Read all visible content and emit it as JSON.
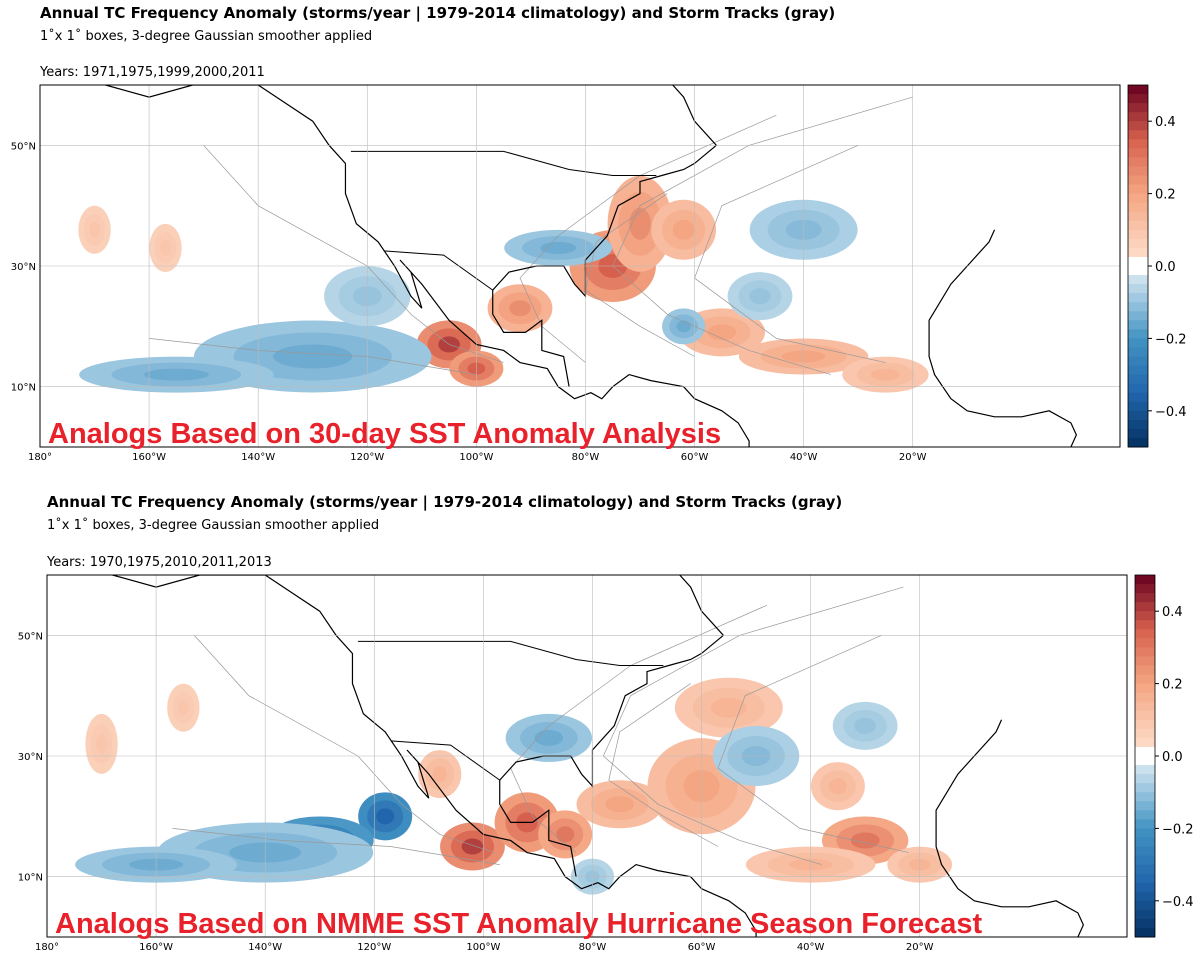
{
  "panels": [
    {
      "title": "Annual TC Frequency Anomaly (storms/year | 1979-2014 climatology) and Storm Tracks (gray)",
      "subtitle": "1˚x 1˚  boxes, 3-degree Gaussian smoother applied",
      "years": "Years: 1971,1975,1999,2000,2011",
      "overlay": "Analogs Based on 30-day SST Anomaly Analysis",
      "anomaly_regions": [
        [
          -75,
          30,
          8,
          6,
          0.35
        ],
        [
          -70,
          37,
          6,
          8,
          0.25
        ],
        [
          -62,
          36,
          6,
          5,
          0.2
        ],
        [
          -105,
          17,
          6,
          4,
          0.4
        ],
        [
          -100,
          13,
          5,
          3,
          0.35
        ],
        [
          -92,
          23,
          6,
          4,
          0.25
        ],
        [
          -55,
          19,
          8,
          4,
          0.2
        ],
        [
          -40,
          15,
          12,
          3,
          0.2
        ],
        [
          -25,
          12,
          8,
          3,
          0.15
        ],
        [
          -170,
          36,
          3,
          4,
          0.1
        ],
        [
          -157,
          33,
          3,
          4,
          0.1
        ],
        [
          -133,
          16,
          7,
          3,
          -0.4
        ],
        [
          -130,
          15,
          22,
          6,
          -0.15
        ],
        [
          -120,
          25,
          8,
          5,
          -0.1
        ],
        [
          -85,
          33,
          10,
          3,
          -0.15
        ],
        [
          -40,
          36,
          10,
          5,
          -0.12
        ],
        [
          -62,
          20,
          4,
          3,
          -0.15
        ],
        [
          -155,
          12,
          18,
          3,
          -0.15
        ],
        [
          -48,
          25,
          6,
          4,
          -0.1
        ]
      ]
    },
    {
      "title": "Annual TC Frequency Anomaly (storms/year | 1979-2014 climatology) and Storm Tracks (gray)",
      "subtitle": "1˚x 1˚  boxes, 3-degree Gaussian smoother applied",
      "years": "Years: 1970,1975,2010,2011,2013",
      "overlay": "Analogs Based on NMME SST Anomaly Hurricane Season Forecast",
      "anomaly_regions": [
        [
          -102,
          15,
          6,
          4,
          0.4
        ],
        [
          -92,
          19,
          6,
          5,
          0.35
        ],
        [
          -85,
          17,
          5,
          4,
          0.3
        ],
        [
          -75,
          22,
          8,
          4,
          0.2
        ],
        [
          -60,
          25,
          10,
          8,
          0.2
        ],
        [
          -55,
          38,
          10,
          5,
          0.15
        ],
        [
          -30,
          16,
          8,
          4,
          0.3
        ],
        [
          -40,
          12,
          12,
          3,
          0.15
        ],
        [
          -20,
          12,
          6,
          3,
          0.15
        ],
        [
          -108,
          27,
          4,
          4,
          0.15
        ],
        [
          -170,
          32,
          3,
          5,
          0.1
        ],
        [
          -155,
          38,
          3,
          4,
          0.1
        ],
        [
          -35,
          25,
          5,
          4,
          0.15
        ],
        [
          -118,
          20,
          5,
          4,
          -0.35
        ],
        [
          -130,
          16,
          10,
          4,
          -0.3
        ],
        [
          -140,
          14,
          20,
          5,
          -0.15
        ],
        [
          -88,
          33,
          8,
          4,
          -0.15
        ],
        [
          -50,
          30,
          8,
          5,
          -0.12
        ],
        [
          -30,
          35,
          6,
          4,
          -0.1
        ],
        [
          -160,
          12,
          15,
          3,
          -0.15
        ],
        [
          -80,
          10,
          4,
          3,
          -0.1
        ]
      ]
    }
  ],
  "axes": {
    "lon_ticks": [
      "180°",
      "160°W",
      "140°W",
      "120°W",
      "100°W",
      "80°W",
      "60°W",
      "40°W",
      "20°W"
    ],
    "lat_ticks": [
      "50°N",
      "30°N",
      "10°N"
    ]
  },
  "colorbar": {
    "ticks": [
      "0.4",
      "0.2",
      "0.0",
      "−0.2",
      "−0.4"
    ],
    "range": [
      -0.5,
      0.5
    ],
    "colormap": "RdBu_r"
  }
}
